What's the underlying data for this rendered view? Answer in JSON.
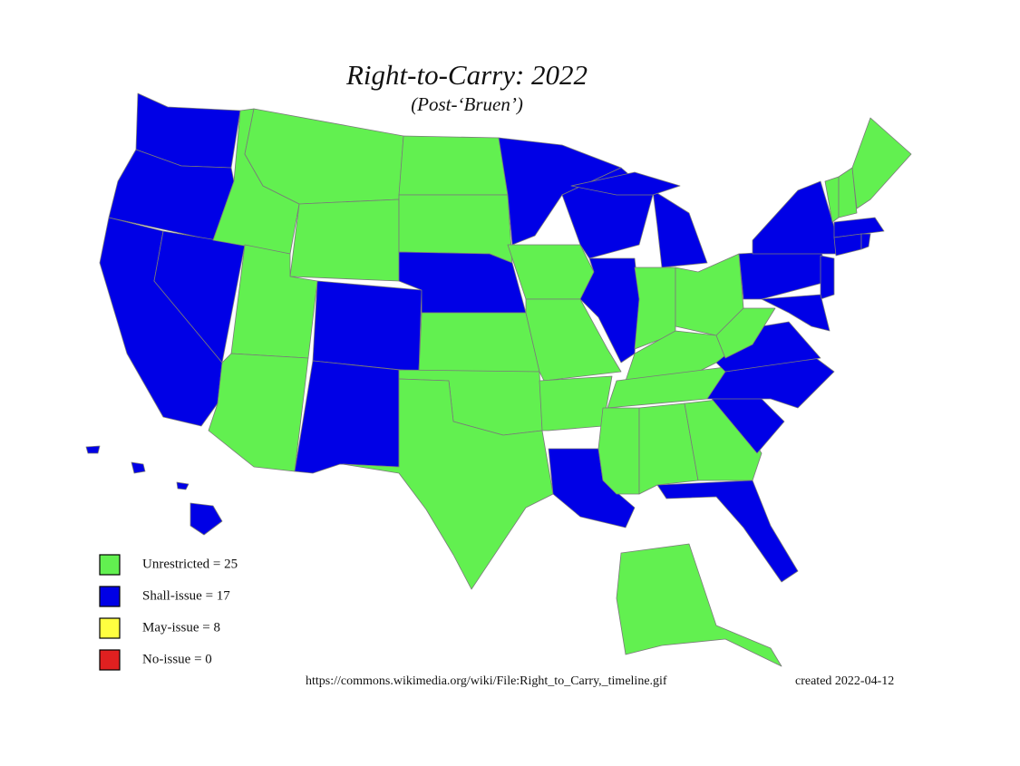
{
  "title": "Right-to-Carry: 2022",
  "subtitle": "(Post-‘Bruen’)",
  "legend": [
    {
      "label": "Unrestricted = 25",
      "color": "#62f050"
    },
    {
      "label": "Shall-issue = 17",
      "color": "#0000e6"
    },
    {
      "label": "May-issue = 8",
      "color": "#ffff40"
    },
    {
      "label": "No-issue = 0",
      "color": "#e02020"
    }
  ],
  "source": "https://commons.wikimedia.org/wiki/File:Right_to_Carry,_timeline.gif",
  "created": "created 2022-04-12"
}
